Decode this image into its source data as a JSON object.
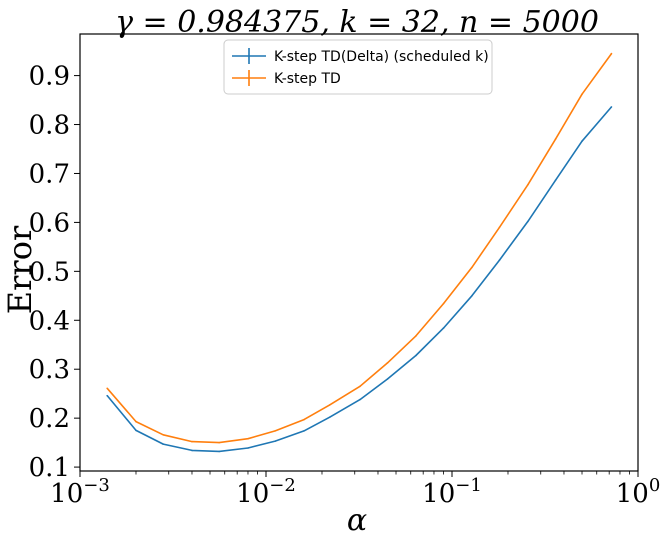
{
  "chart_data": {
    "type": "line",
    "title": "γ = 0.984375, k = 32, n = 5000",
    "xlabel": "α",
    "ylabel": "Error",
    "xscale": "log",
    "xlim": [
      0.001,
      1
    ],
    "ylim": [
      0.092,
      0.985
    ],
    "xticks": [
      {
        "value": 0.001,
        "base": "10",
        "exp": "−3"
      },
      {
        "value": 0.01,
        "base": "10",
        "exp": "−2"
      },
      {
        "value": 0.1,
        "base": "10",
        "exp": "−1"
      },
      {
        "value": 1,
        "base": "10",
        "exp": "0"
      }
    ],
    "yticks": [
      0.1,
      0.2,
      0.3,
      0.4,
      0.5,
      0.6,
      0.7,
      0.8,
      0.9
    ],
    "ytick_labels": [
      "0.1",
      "0.2",
      "0.3",
      "0.4",
      "0.5",
      "0.6",
      "0.7",
      "0.8",
      "0.9"
    ],
    "legend_position": "top-center",
    "grid": false,
    "x": [
      0.0014,
      0.002,
      0.0028,
      0.004,
      0.0056,
      0.008,
      0.0112,
      0.016,
      0.022,
      0.032,
      0.045,
      0.064,
      0.09,
      0.128,
      0.18,
      0.256,
      0.36,
      0.5,
      0.72
    ],
    "series": [
      {
        "name": "K-step TD(Delta) (scheduled k)",
        "color": "#1f77b4",
        "values": [
          0.246,
          0.175,
          0.147,
          0.134,
          0.132,
          0.139,
          0.153,
          0.174,
          0.202,
          0.238,
          0.28,
          0.328,
          0.384,
          0.45,
          0.523,
          0.602,
          0.686,
          0.766,
          0.836
        ]
      },
      {
        "name": "K-step TD",
        "color": "#ff7f0e",
        "values": [
          0.261,
          0.193,
          0.166,
          0.152,
          0.15,
          0.158,
          0.174,
          0.197,
          0.227,
          0.265,
          0.313,
          0.368,
          0.434,
          0.508,
          0.59,
          0.677,
          0.77,
          0.862,
          0.945
        ]
      }
    ]
  }
}
